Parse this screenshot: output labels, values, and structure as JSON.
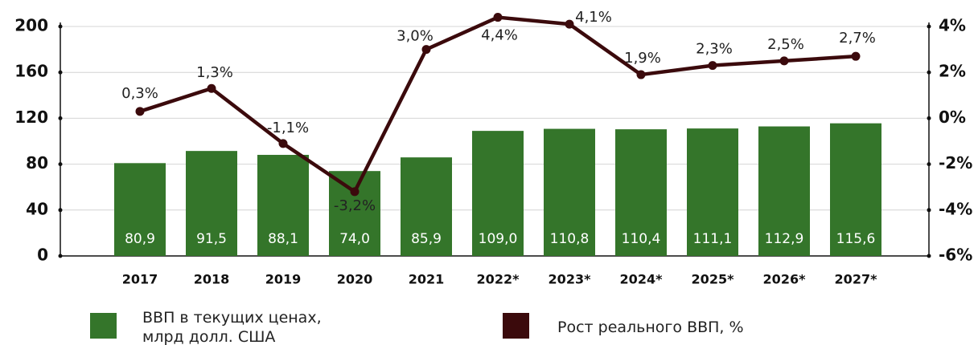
{
  "chart_data": {
    "type": "bar_line",
    "categories": [
      "2017",
      "2018",
      "2019",
      "2020",
      "2021",
      "2022*",
      "2023*",
      "2024*",
      "2025*",
      "2026*",
      "2027*"
    ],
    "series": [
      {
        "name": "ВВП в текущих ценах, млрд долл. США",
        "type": "bar",
        "color": "#34752a",
        "values": [
          80.9,
          91.5,
          88.1,
          74.0,
          85.9,
          109.0,
          110.8,
          110.4,
          111.1,
          112.9,
          115.6
        ],
        "value_labels": [
          "80,9",
          "91,5",
          "88,1",
          "74,0",
          "85,9",
          "109,0",
          "110,8",
          "110,4",
          "111,1",
          "112,9",
          "115,6"
        ]
      },
      {
        "name": "Рост реального ВВП, %",
        "type": "line",
        "axis": "y2",
        "color": "#3b0a0c",
        "values": [
          0.3,
          1.3,
          -1.1,
          -3.2,
          3.0,
          4.4,
          4.1,
          1.9,
          2.3,
          2.5,
          2.7
        ],
        "value_labels": [
          "0,3%",
          "1,3%",
          "-1,1%",
          "-3,2%",
          "3,0%",
          "4,4%",
          "4,1%",
          "1,9%",
          "2,3%",
          "2,5%",
          "2,7%"
        ]
      }
    ],
    "ylim": [
      0,
      200
    ],
    "yticks": [
      0,
      40,
      80,
      120,
      160,
      200
    ],
    "y2lim": [
      -6,
      4
    ],
    "y2ticks": [
      {
        "value": -6,
        "label": "-6%"
      },
      {
        "value": -4,
        "label": "-4%"
      },
      {
        "value": -2,
        "label": "-2%"
      },
      {
        "value": 0,
        "label": "0%"
      },
      {
        "value": 2,
        "label": "2%"
      },
      {
        "value": 4,
        "label": "4%"
      }
    ],
    "grid": true
  }
}
